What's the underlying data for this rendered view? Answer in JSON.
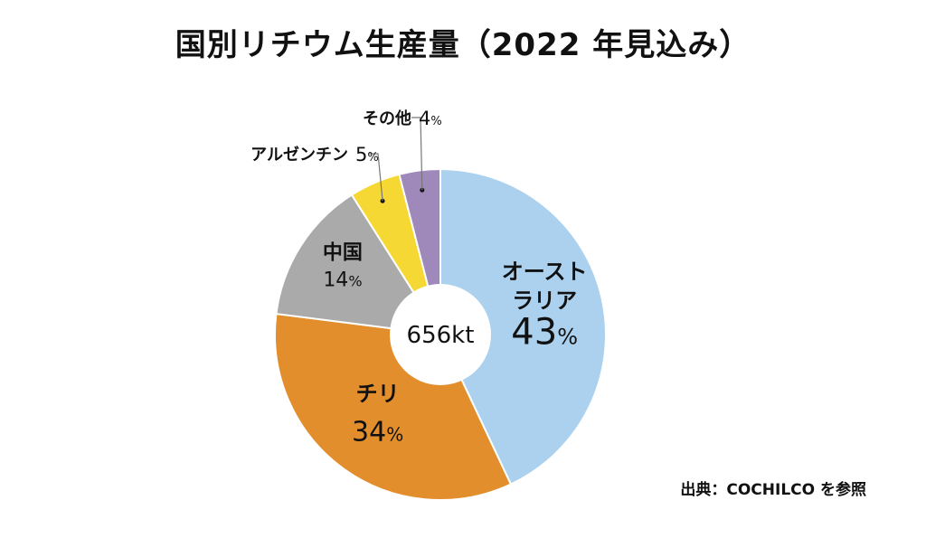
{
  "chart_data": {
    "type": "pie",
    "title": "国別リチウム生産量（2022 年見込み）",
    "center_label": "656kt",
    "source": "出典：COCHILCO を参照",
    "slices": [
      {
        "name": "オーストラリア",
        "name_lines": [
          "オースト",
          "ラリア"
        ],
        "value": 43,
        "color": "#abd1ef"
      },
      {
        "name": "チリ",
        "name_lines": [
          "チリ"
        ],
        "value": 34,
        "color": "#e38e2c"
      },
      {
        "name": "中国",
        "name_lines": [
          "中国"
        ],
        "value": 14,
        "color": "#aaaaaa"
      },
      {
        "name": "アルゼンチン",
        "name_lines": [
          "アルゼンチン"
        ],
        "value": 5,
        "color": "#f6d835"
      },
      {
        "name": "その他",
        "name_lines": [
          "その他"
        ],
        "value": 4,
        "color": "#9f89bb"
      }
    ],
    "value_suffix": "%"
  }
}
